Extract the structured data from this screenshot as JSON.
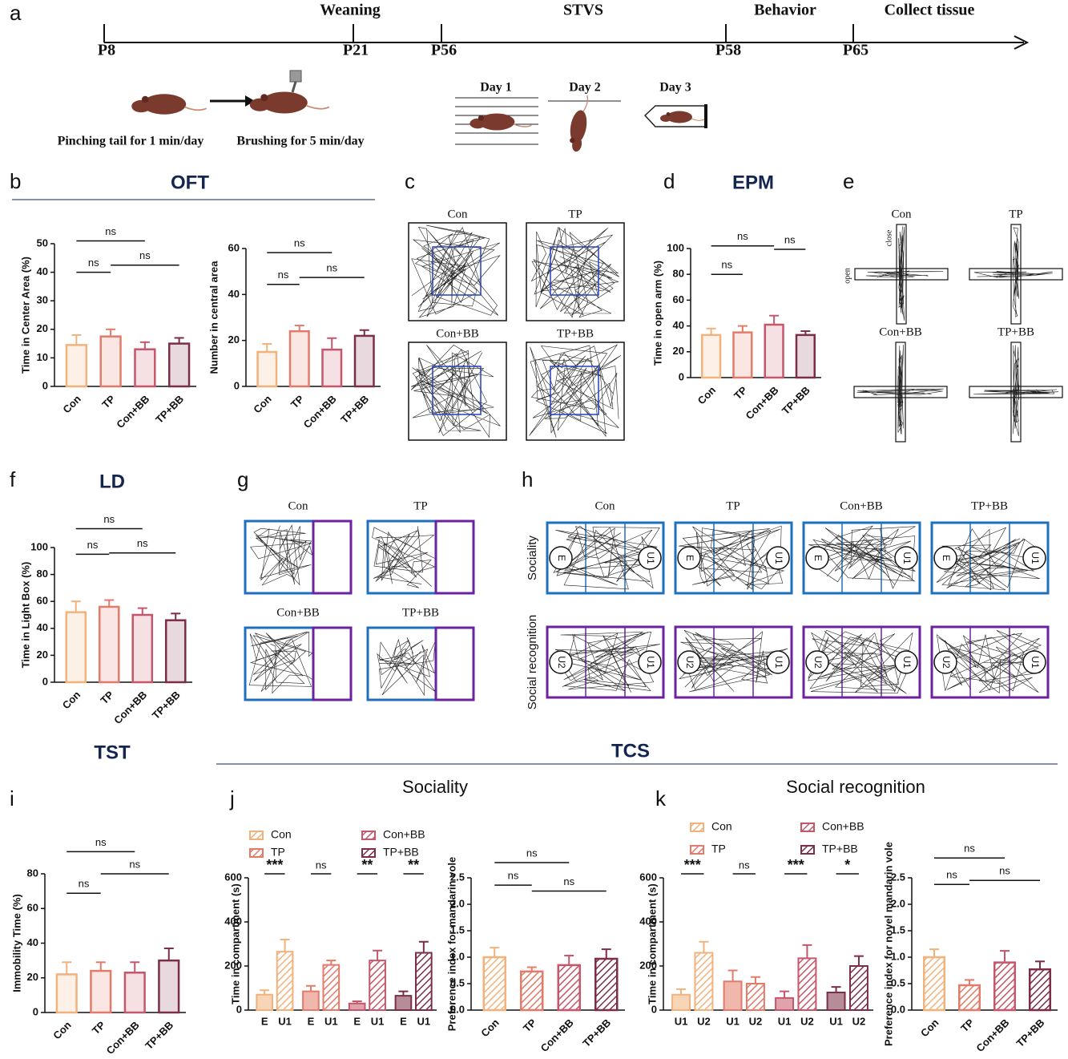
{
  "panel_letters": [
    "a",
    "b",
    "c",
    "d",
    "e",
    "f",
    "g",
    "h",
    "i",
    "j",
    "k"
  ],
  "timeline": {
    "phases": [
      "Weaning",
      "STVS",
      "Behavior",
      "Collect tissue"
    ],
    "days": [
      "P8",
      "P21",
      "P56",
      "P58",
      "P65"
    ],
    "steps": [
      "Pinching tail for 1 min/day",
      "Brushing for 5 min/day"
    ],
    "stvs_days": [
      "Day 1",
      "Day 2",
      "Day 3"
    ]
  },
  "section_titles": {
    "oft": "OFT",
    "epm": "EPM",
    "ld": "LD",
    "tst": "TST",
    "tcs": "TCS",
    "sociality": "Sociality",
    "social_recognition": "Social recognition"
  },
  "groups": [
    "Con",
    "TP",
    "Con+BB",
    "TP+BB"
  ],
  "trajectories": {
    "epm_arms": [
      "close",
      "open"
    ],
    "tcs_rows": [
      "Sociality",
      "Social recognition"
    ],
    "chambers": [
      "E",
      "U1",
      "U2"
    ]
  },
  "chart_data": [
    {
      "type": "bar",
      "ylabel": "Time in Center Area (%)",
      "categories": [
        "Con",
        "TP",
        "Con+BB",
        "TP+BB"
      ],
      "values": [
        14.5,
        17.5,
        13,
        15
      ],
      "errors": [
        3.5,
        2.5,
        2.5,
        2
      ],
      "colors": [
        "#f2b27c",
        "#e37b6a",
        "#c6566a",
        "#7b2e46"
      ],
      "ylim": [
        0,
        50
      ],
      "yticks": [
        0,
        10,
        20,
        30,
        40,
        50
      ],
      "brackets": [
        {
          "between": [
            "Con",
            "TP"
          ],
          "label": "ns"
        },
        {
          "between": [
            "TP",
            "TP+BB"
          ],
          "label": "ns"
        },
        {
          "between": [
            "Con",
            "Con+BB"
          ],
          "label": "ns"
        }
      ]
    },
    {
      "type": "bar",
      "ylabel": "Number in central area",
      "categories": [
        "Con",
        "TP",
        "Con+BB",
        "TP+BB"
      ],
      "values": [
        15,
        24,
        16,
        22
      ],
      "errors": [
        3.5,
        2.5,
        5,
        2.5
      ],
      "colors": [
        "#f2b27c",
        "#e37b6a",
        "#c6566a",
        "#7b2e46"
      ],
      "ylim": [
        0,
        60
      ],
      "yticks": [
        0,
        20,
        40,
        60
      ],
      "brackets": [
        {
          "between": [
            "Con",
            "TP"
          ],
          "label": "ns"
        },
        {
          "between": [
            "TP",
            "TP+BB"
          ],
          "label": "ns"
        },
        {
          "between": [
            "Con",
            "Con+BB"
          ],
          "label": "ns"
        }
      ]
    },
    {
      "type": "bar",
      "ylabel": "Time in open arm (%)",
      "categories": [
        "Con",
        "TP",
        "Con+BB",
        "TP+BB"
      ],
      "values": [
        33,
        35,
        41,
        33
      ],
      "errors": [
        5,
        5,
        7,
        3
      ],
      "colors": [
        "#f2b27c",
        "#e37b6a",
        "#c6566a",
        "#7b2e46"
      ],
      "ylim": [
        0,
        100
      ],
      "yticks": [
        0,
        20,
        40,
        60,
        80,
        100
      ],
      "brackets": [
        {
          "between": [
            "Con",
            "TP"
          ],
          "label": "ns"
        },
        {
          "between": [
            "Con",
            "Con+BB"
          ],
          "label": "ns"
        },
        {
          "between": [
            "Con+BB",
            "TP+BB"
          ],
          "label": "ns"
        }
      ]
    },
    {
      "type": "bar",
      "ylabel": "Time in Light Box (%)",
      "categories": [
        "Con",
        "TP",
        "Con+BB",
        "TP+BB"
      ],
      "values": [
        52,
        56,
        50,
        46
      ],
      "errors": [
        8,
        5,
        5,
        5
      ],
      "colors": [
        "#f2b27c",
        "#e37b6a",
        "#c6566a",
        "#7b2e46"
      ],
      "ylim": [
        0,
        100
      ],
      "yticks": [
        0,
        20,
        40,
        60,
        80,
        100
      ],
      "brackets": [
        {
          "between": [
            "Con",
            "TP"
          ],
          "label": "ns"
        },
        {
          "between": [
            "TP",
            "TP+BB"
          ],
          "label": "ns"
        },
        {
          "between": [
            "Con",
            "Con+BB"
          ],
          "label": "ns"
        }
      ]
    },
    {
      "type": "bar",
      "ylabel": "Immobility Time (%)",
      "categories": [
        "Con",
        "TP",
        "Con+BB",
        "TP+BB"
      ],
      "values": [
        22,
        24,
        23,
        30
      ],
      "errors": [
        7,
        5,
        6,
        7
      ],
      "colors": [
        "#f2b27c",
        "#e37b6a",
        "#c6566a",
        "#7b2e46"
      ],
      "ylim": [
        0,
        80
      ],
      "yticks": [
        0,
        20,
        40,
        60,
        80
      ],
      "brackets": [
        {
          "between": [
            "Con",
            "TP"
          ],
          "label": "ns"
        },
        {
          "between": [
            "TP",
            "TP+BB"
          ],
          "label": "ns"
        },
        {
          "between": [
            "Con",
            "Con+BB"
          ],
          "label": "ns"
        }
      ]
    },
    {
      "type": "grouped_bar",
      "ylabel": "Time in compartment (s)",
      "categories": [
        "E",
        "U1"
      ],
      "hatch": true,
      "series": [
        {
          "name": "Con",
          "color": "#f2b27c",
          "values": [
            70,
            265
          ],
          "errors": [
            20,
            55
          ],
          "significance": "***"
        },
        {
          "name": "TP",
          "color": "#e37b6a",
          "values": [
            85,
            205
          ],
          "errors": [
            25,
            20
          ],
          "significance": "ns"
        },
        {
          "name": "Con+BB",
          "color": "#c6566a",
          "values": [
            30,
            225
          ],
          "errors": [
            10,
            45
          ],
          "significance": "**"
        },
        {
          "name": "TP+BB",
          "color": "#7b2e46",
          "values": [
            65,
            260
          ],
          "errors": [
            20,
            50
          ],
          "significance": "**"
        }
      ],
      "ylim": [
        0,
        600
      ],
      "yticks": [
        0,
        200,
        400,
        600
      ]
    },
    {
      "type": "bar",
      "ylabel": "Preference index for mandarin vole",
      "categories": [
        "Con",
        "TP",
        "Con+BB",
        "TP+BB"
      ],
      "hatch": true,
      "values": [
        1.0,
        0.73,
        0.85,
        0.97
      ],
      "errors": [
        0.18,
        0.08,
        0.18,
        0.18
      ],
      "colors": [
        "#f2b27c",
        "#e37b6a",
        "#c6566a",
        "#7b2e46"
      ],
      "ylim": [
        0,
        2.5
      ],
      "yticks": [
        {
          "value": 0,
          "label": "0.0"
        },
        0.5,
        {
          "value": 1,
          "label": "1.0"
        },
        1.5,
        {
          "value": 2,
          "label": "2.0"
        },
        2.5
      ],
      "brackets": [
        {
          "between": [
            "Con",
            "TP"
          ],
          "label": "ns"
        },
        {
          "between": [
            "TP",
            "TP+BB"
          ],
          "label": "ns"
        },
        {
          "between": [
            "Con",
            "Con+BB"
          ],
          "label": "ns"
        }
      ]
    },
    {
      "type": "grouped_bar",
      "ylabel": "Time in compartment (s)",
      "categories": [
        "U1",
        "U2"
      ],
      "hatch": true,
      "series": [
        {
          "name": "Con",
          "color": "#f2b27c",
          "values": [
            70,
            260
          ],
          "errors": [
            25,
            50
          ],
          "significance": "***"
        },
        {
          "name": "TP",
          "color": "#e37b6a",
          "values": [
            130,
            120
          ],
          "errors": [
            50,
            30
          ],
          "significance": "ns"
        },
        {
          "name": "Con+BB",
          "color": "#c6566a",
          "values": [
            55,
            235
          ],
          "errors": [
            30,
            60
          ],
          "significance": "***"
        },
        {
          "name": "TP+BB",
          "color": "#7b2e46",
          "values": [
            80,
            200
          ],
          "errors": [
            25,
            45
          ],
          "significance": "*"
        }
      ],
      "ylim": [
        0,
        600
      ],
      "yticks": [
        0,
        200,
        400,
        600
      ]
    },
    {
      "type": "bar",
      "ylabel": "Preference index for novel mandarin vole",
      "categories": [
        "Con",
        "TP",
        "Con+BB",
        "TP+BB"
      ],
      "hatch": true,
      "values": [
        1.0,
        0.47,
        0.9,
        0.77
      ],
      "errors": [
        0.15,
        0.1,
        0.22,
        0.15
      ],
      "colors": [
        "#f2b27c",
        "#e37b6a",
        "#c6566a",
        "#7b2e46"
      ],
      "ylim": [
        0,
        2.5
      ],
      "yticks": [
        {
          "value": 0,
          "label": "0.0"
        },
        0.5,
        {
          "value": 1,
          "label": "1.0"
        },
        1.5,
        {
          "value": 2,
          "label": "2.0"
        },
        2.5
      ],
      "brackets": [
        {
          "between": [
            "Con",
            "TP"
          ],
          "label": "ns"
        },
        {
          "between": [
            "TP",
            "TP+BB"
          ],
          "label": "ns"
        },
        {
          "between": [
            "Con",
            "Con+BB"
          ],
          "label": "ns"
        }
      ]
    }
  ]
}
